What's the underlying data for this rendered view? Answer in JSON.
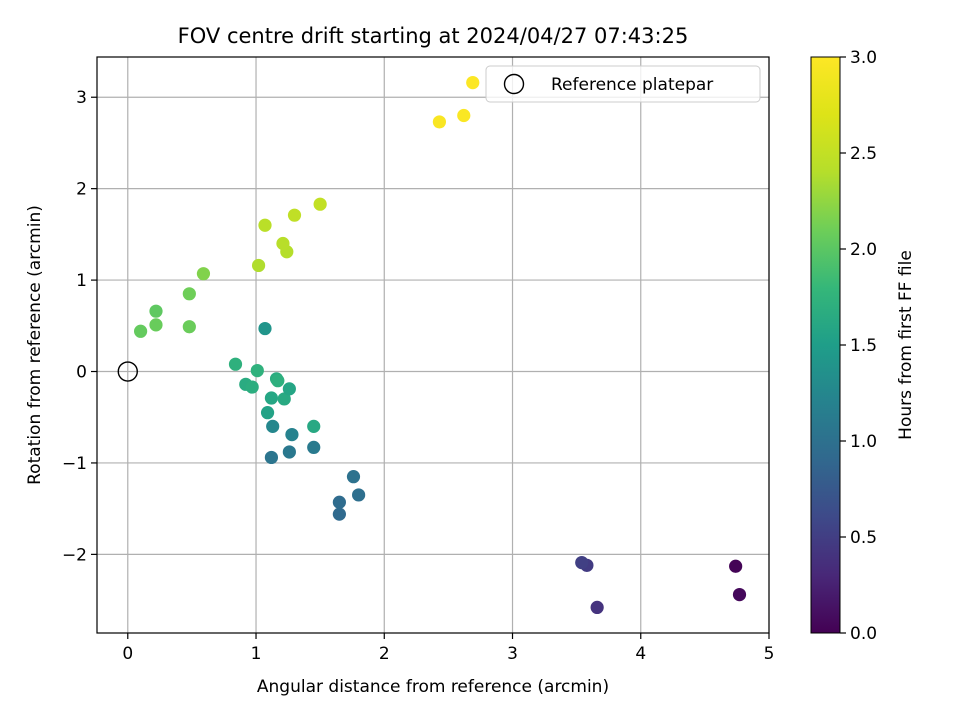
{
  "chart_data": {
    "type": "scatter",
    "title": "FOV centre drift starting at 2024/04/27 07:43:25",
    "xlabel": "Angular distance from reference (arcmin)",
    "ylabel": "Rotation from reference (arcmin)",
    "xlim": [
      -0.24,
      5.0
    ],
    "ylim": [
      -2.86,
      3.44
    ],
    "xticks": [
      0,
      1,
      2,
      3,
      4,
      5
    ],
    "yticks": [
      -2,
      -1,
      0,
      1,
      2,
      3
    ],
    "grid": true,
    "legend": {
      "location": "upper right",
      "entries": [
        "Reference platepar"
      ]
    },
    "reference_point": {
      "x": 0,
      "y": 0,
      "marker": "open-circle"
    },
    "colorbar": {
      "label": "Hours from first FF file",
      "colormap": "viridis",
      "range": [
        0.0,
        3.0
      ],
      "ticks": [
        "0.0",
        "0.5",
        "1.0",
        "1.5",
        "2.0",
        "2.5",
        "3.0"
      ]
    },
    "points": [
      {
        "x": 4.74,
        "y": -2.13,
        "c": 0.02
      },
      {
        "x": 4.77,
        "y": -2.44,
        "c": 0.06
      },
      {
        "x": 3.66,
        "y": -2.58,
        "c": 0.4
      },
      {
        "x": 3.58,
        "y": -2.12,
        "c": 0.47
      },
      {
        "x": 3.54,
        "y": -2.09,
        "c": 0.52
      },
      {
        "x": 1.65,
        "y": -1.56,
        "c": 0.92
      },
      {
        "x": 1.65,
        "y": -1.43,
        "c": 0.95
      },
      {
        "x": 1.8,
        "y": -1.35,
        "c": 0.98
      },
      {
        "x": 1.76,
        "y": -1.15,
        "c": 1.02
      },
      {
        "x": 1.12,
        "y": -0.94,
        "c": 1.05
      },
      {
        "x": 1.26,
        "y": -0.88,
        "c": 1.08
      },
      {
        "x": 1.45,
        "y": -0.83,
        "c": 1.11
      },
      {
        "x": 1.28,
        "y": -0.69,
        "c": 1.2
      },
      {
        "x": 1.13,
        "y": -0.6,
        "c": 1.25
      },
      {
        "x": 1.45,
        "y": -0.6,
        "c": 1.62
      },
      {
        "x": 1.09,
        "y": -0.45,
        "c": 1.55
      },
      {
        "x": 1.12,
        "y": -0.29,
        "c": 1.6
      },
      {
        "x": 1.22,
        "y": -0.3,
        "c": 1.63
      },
      {
        "x": 1.26,
        "y": -0.19,
        "c": 1.58
      },
      {
        "x": 0.92,
        "y": -0.14,
        "c": 1.65
      },
      {
        "x": 0.97,
        "y": -0.17,
        "c": 1.68
      },
      {
        "x": 1.16,
        "y": -0.08,
        "c": 1.66
      },
      {
        "x": 1.17,
        "y": -0.1,
        "c": 1.7
      },
      {
        "x": 0.84,
        "y": 0.08,
        "c": 1.72
      },
      {
        "x": 1.01,
        "y": 0.01,
        "c": 1.73
      },
      {
        "x": 1.07,
        "y": 0.47,
        "c": 1.4
      },
      {
        "x": 0.1,
        "y": 0.44,
        "c": 2.05
      },
      {
        "x": 0.22,
        "y": 0.51,
        "c": 2.07
      },
      {
        "x": 0.22,
        "y": 0.66,
        "c": 2.02
      },
      {
        "x": 0.48,
        "y": 0.49,
        "c": 2.08
      },
      {
        "x": 0.48,
        "y": 0.85,
        "c": 2.1
      },
      {
        "x": 0.59,
        "y": 1.07,
        "c": 2.18
      },
      {
        "x": 1.02,
        "y": 1.16,
        "c": 2.38
      },
      {
        "x": 1.24,
        "y": 1.31,
        "c": 2.4
      },
      {
        "x": 1.21,
        "y": 1.4,
        "c": 2.42
      },
      {
        "x": 1.07,
        "y": 1.6,
        "c": 2.44
      },
      {
        "x": 1.3,
        "y": 1.71,
        "c": 2.48
      },
      {
        "x": 1.5,
        "y": 1.83,
        "c": 2.5
      },
      {
        "x": 2.43,
        "y": 2.73,
        "c": 2.96
      },
      {
        "x": 2.62,
        "y": 2.8,
        "c": 2.97
      },
      {
        "x": 2.69,
        "y": 3.16,
        "c": 2.99
      }
    ]
  }
}
